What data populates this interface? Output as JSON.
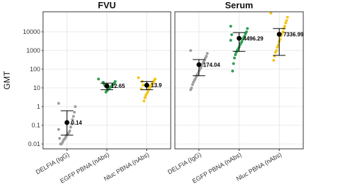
{
  "chart_data": [
    {
      "type": "strip",
      "title": "FVU",
      "ylabel": "GMT",
      "log_y": true,
      "grid": true,
      "ylim": [
        0.0055,
        118000
      ],
      "yticks": [
        0.01,
        0.1,
        1,
        10,
        100,
        1000,
        10000
      ],
      "categories": [
        "DELFIA (IgG)",
        "EGFP PBNA (nAbs)",
        "Nluc PBNA (nAbs)"
      ],
      "groups": [
        {
          "color": "#9e9e9e",
          "values": [
            1.5,
            1.0,
            0.5,
            0.3,
            0.2,
            0.12,
            0.08,
            0.05,
            0.04,
            0.035,
            0.03,
            0.025,
            0.02,
            0.018,
            0.015,
            0.012,
            0.01,
            0.01,
            0.02,
            0.06
          ],
          "gmt": 0.14,
          "ci": [
            0.03,
            0.6
          ]
        },
        {
          "color": "#2e9e4f",
          "values": [
            30,
            22,
            18,
            15,
            14,
            12,
            11,
            10,
            9,
            8,
            7,
            6,
            13,
            16,
            20
          ],
          "gmt": 12.65,
          "ci": [
            8,
            18
          ]
        },
        {
          "color": "#f5c518",
          "values": [
            35,
            30,
            25,
            20,
            18,
            15,
            12,
            10,
            8,
            6,
            5,
            4,
            3,
            2,
            14,
            22,
            9
          ],
          "gmt": 13.9,
          "ci": [
            8,
            22
          ]
        }
      ]
    },
    {
      "type": "strip",
      "title": "Serum",
      "log_y": true,
      "grid": true,
      "ylim": [
        0.0055,
        118000
      ],
      "yticks": [
        0.01,
        0.1,
        1,
        10,
        100,
        1000,
        10000
      ],
      "categories": [
        "DELFIA (IgG)",
        "EGFP PBNA (nAbs)",
        "Nluc PBNA (nAbs)"
      ],
      "groups": [
        {
          "color": "#9e9e9e",
          "values": [
            1000,
            700,
            500,
            400,
            300,
            250,
            200,
            150,
            120,
            100,
            80,
            60,
            50,
            40,
            30,
            25,
            20,
            15,
            10,
            8
          ],
          "gmt": 174.04,
          "ci": [
            45,
            330
          ]
        },
        {
          "color": "#2e9e4f",
          "values": [
            20000,
            15000,
            10000,
            8000,
            6000,
            5000,
            4000,
            3000,
            2500,
            2000,
            1500,
            1200,
            1000,
            800,
            600,
            400,
            200,
            80,
            7000,
            3500
          ],
          "gmt": 4496.29,
          "ci": [
            900,
            9000
          ]
        },
        {
          "color": "#f5c518",
          "values": [
            100000,
            60000,
            40000,
            30000,
            20000,
            15000,
            10000,
            8000,
            6000,
            4000,
            3000,
            2000,
            1500,
            1000,
            800,
            500,
            300
          ],
          "gmt": 7336.99,
          "ci": [
            550,
            15000
          ]
        }
      ]
    }
  ]
}
